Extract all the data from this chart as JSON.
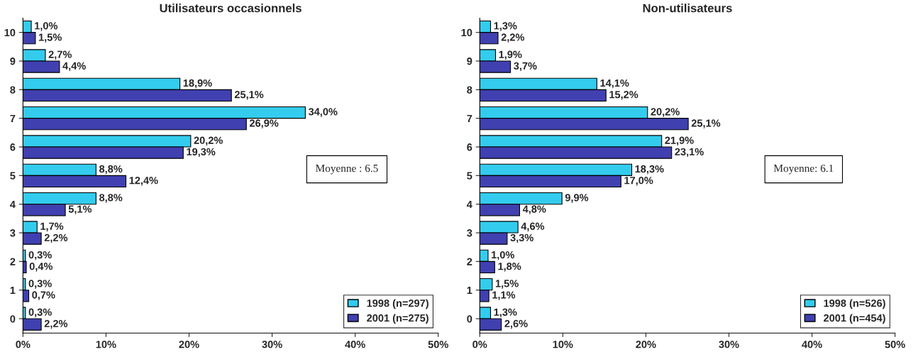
{
  "chart_data": [
    {
      "type": "bar",
      "orientation": "horizontal",
      "title": "Utilisateurs occasionnels",
      "categories": [
        "10",
        "9",
        "8",
        "7",
        "6",
        "5",
        "4",
        "3",
        "2",
        "1",
        "0"
      ],
      "series": [
        {
          "name": "1998 (n=297)",
          "color": "#33ccee",
          "values": [
            1.0,
            2.7,
            18.9,
            34.0,
            20.2,
            8.8,
            8.8,
            1.7,
            0.3,
            0.3,
            0.3
          ],
          "value_labels": [
            "1,0%",
            "2,7%",
            "18,9%",
            "34,0%",
            "20,2%",
            "8,8%",
            "8,8%",
            "1,7%",
            "0,3%",
            "0,3%",
            "0,3%"
          ]
        },
        {
          "name": "2001 (n=275)",
          "color": "#4040b0",
          "values": [
            1.5,
            4.4,
            25.1,
            26.9,
            19.3,
            12.4,
            5.1,
            2.2,
            0.4,
            0.7,
            2.2
          ],
          "value_labels": [
            "1,5%",
            "4,4%",
            "25,1%",
            "26,9%",
            "19,3%",
            "12,4%",
            "5,1%",
            "2,2%",
            "0,4%",
            "0,7%",
            "2,2%"
          ]
        }
      ],
      "xlim": [
        0,
        50
      ],
      "xticks": [
        {
          "value": 0,
          "label": "0%"
        },
        {
          "value": 10,
          "label": "10%"
        },
        {
          "value": 20,
          "label": "20%"
        },
        {
          "value": 30,
          "label": "30%"
        },
        {
          "value": 40,
          "label": "40%"
        },
        {
          "value": 50,
          "label": "50%"
        }
      ],
      "annotations": [
        "Moyenne : 6.5"
      ],
      "grid": false,
      "legend": "bottom right"
    },
    {
      "type": "bar",
      "orientation": "horizontal",
      "title": "Non-utilisateurs",
      "categories": [
        "10",
        "9",
        "8",
        "7",
        "6",
        "5",
        "4",
        "3",
        "2",
        "1",
        "0"
      ],
      "series": [
        {
          "name": "1998 (n=526)",
          "color": "#33ccee",
          "values": [
            1.3,
            1.9,
            14.1,
            20.2,
            21.9,
            18.3,
            9.9,
            4.6,
            1.0,
            1.5,
            1.3
          ],
          "value_labels": [
            "1,3%",
            "1,9%",
            "14,1%",
            "20,2%",
            "21,9%",
            "18,3%",
            "9,9%",
            "4,6%",
            "1,0%",
            "1,5%",
            "1,3%"
          ]
        },
        {
          "name": "2001 (n=454)",
          "color": "#4040b0",
          "values": [
            2.2,
            3.7,
            15.2,
            25.1,
            23.1,
            17.0,
            4.8,
            3.3,
            1.8,
            1.1,
            2.6
          ],
          "value_labels": [
            "2,2%",
            "3,7%",
            "15,2%",
            "25,1%",
            "23,1%",
            "17,0%",
            "4,8%",
            "3,3%",
            "1,8%",
            "1,1%",
            "2,6%"
          ]
        }
      ],
      "xlim": [
        0,
        50
      ],
      "xticks": [
        {
          "value": 0,
          "label": "0%"
        },
        {
          "value": 10,
          "label": "10%"
        },
        {
          "value": 20,
          "label": "20%"
        },
        {
          "value": 30,
          "label": "30%"
        },
        {
          "value": 40,
          "label": "40%"
        },
        {
          "value": 50,
          "label": "50%"
        }
      ],
      "annotations": [
        "Moyenne: 6.1"
      ],
      "grid": false,
      "legend": "bottom right"
    }
  ]
}
